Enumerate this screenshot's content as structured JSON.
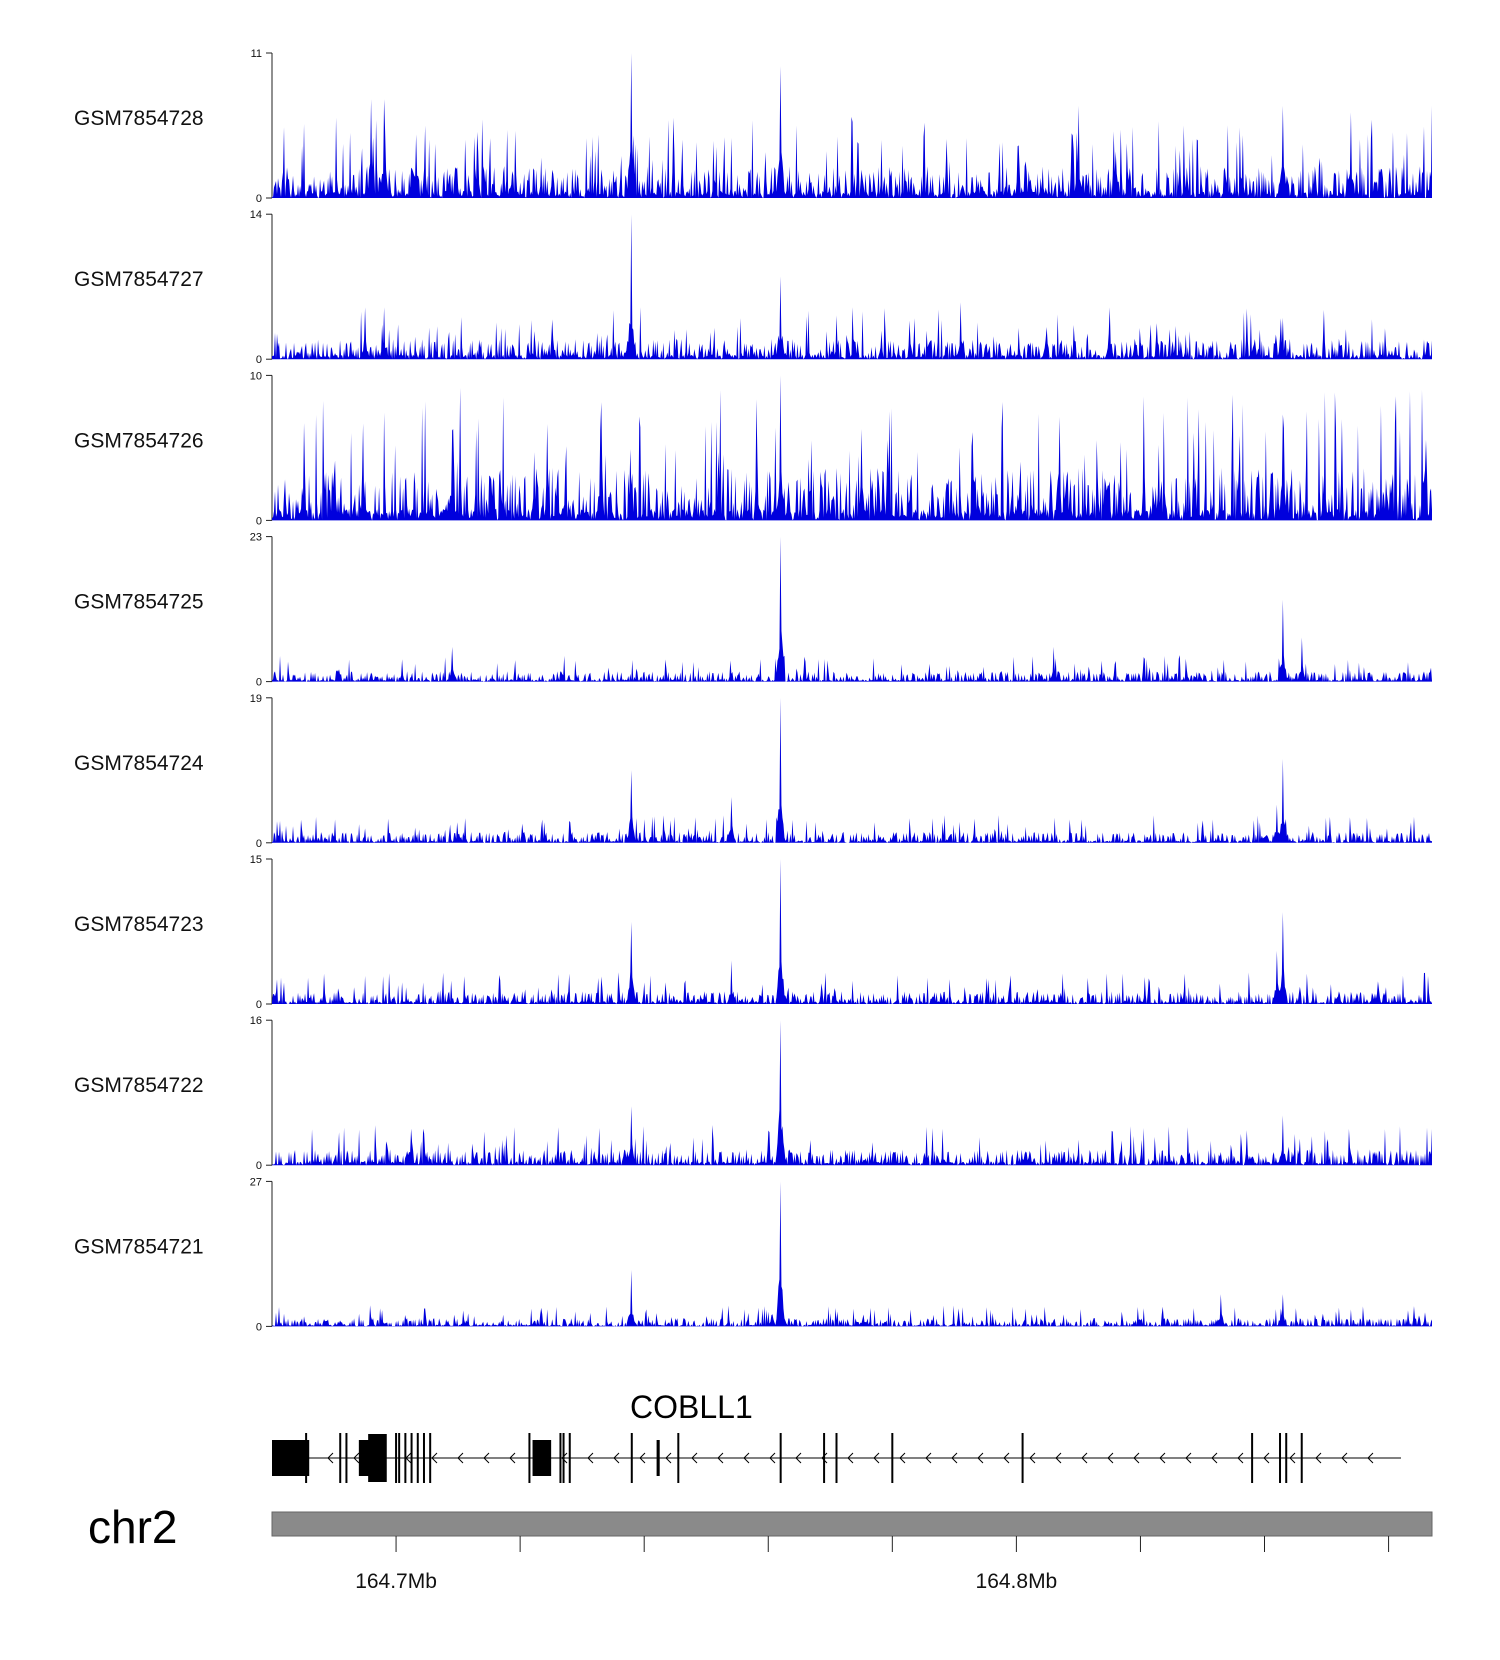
{
  "chart_data": {
    "type": "area",
    "title": "",
    "colors": {
      "signal": "#0000dd",
      "axis": "#222222",
      "ideogram": "#8a8a8a",
      "gene": "#000000"
    },
    "x_range": [
      164.68,
      164.867
    ],
    "x_unit": "Mb",
    "tracks": [
      {
        "name": "GSM7854728",
        "ymax": 11,
        "ymin": 0,
        "ymin_label": "0",
        "ymax_label": "11",
        "peaks": [
          [
            164.738,
            11
          ],
          [
            164.762,
            10
          ],
          [
            164.696,
            7.5
          ],
          [
            164.698,
            7.5
          ],
          [
            164.843,
            7
          ],
          [
            164.867,
            7
          ],
          [
            164.81,
            7
          ],
          [
            164.854,
            6.5
          ]
        ],
        "background": 2.2,
        "seed": 11
      },
      {
        "name": "GSM7854727",
        "ymax": 14,
        "ymin": 0,
        "ymin_label": "0",
        "ymax_label": "14",
        "peaks": [
          [
            164.738,
            14
          ],
          [
            164.762,
            8
          ],
          [
            164.695,
            5
          ],
          [
            164.698,
            5
          ],
          [
            164.791,
            5.5
          ],
          [
            164.815,
            5
          ],
          [
            164.843,
            4
          ]
        ],
        "background": 1.8,
        "seed": 27
      },
      {
        "name": "GSM7854726",
        "ymax": 10,
        "ymin": 0,
        "ymin_label": "0",
        "ymax_label": "10",
        "peaks": [
          [
            164.762,
            10
          ],
          [
            164.843,
            7.3
          ],
          [
            164.709,
            6.2
          ],
          [
            164.733,
            6.2
          ],
          [
            164.775,
            6.3
          ],
          [
            164.752,
            4.7
          ],
          [
            164.823,
            5.2
          ]
        ],
        "background": 3.3,
        "seed": 43
      },
      {
        "name": "GSM7854725",
        "ymax": 23,
        "ymin": 0,
        "ymin_label": "0",
        "ymax_label": "23",
        "peaks": [
          [
            164.762,
            23
          ],
          [
            164.843,
            13
          ],
          [
            164.846,
            7
          ],
          [
            164.709,
            5.5
          ],
          [
            164.806,
            5.5
          ]
        ],
        "background": 1.5,
        "seed": 59
      },
      {
        "name": "GSM7854724",
        "ymax": 19,
        "ymin": 0,
        "ymin_label": "0",
        "ymax_label": "19",
        "peaks": [
          [
            164.762,
            19
          ],
          [
            164.843,
            11
          ],
          [
            164.738,
            9.5
          ],
          [
            164.754,
            6
          ],
          [
            164.842,
            5
          ]
        ],
        "background": 1.3,
        "seed": 71
      },
      {
        "name": "GSM7854723",
        "ymax": 15,
        "ymin": 0,
        "ymin_label": "0",
        "ymax_label": "15",
        "peaks": [
          [
            164.762,
            15
          ],
          [
            164.843,
            9.5
          ],
          [
            164.738,
            8.5
          ],
          [
            164.754,
            4.5
          ],
          [
            164.842,
            5.5
          ]
        ],
        "background": 1.2,
        "seed": 83
      },
      {
        "name": "GSM7854722",
        "ymax": 16,
        "ymin": 0,
        "ymin_label": "0",
        "ymax_label": "16",
        "peaks": [
          [
            164.762,
            16
          ],
          [
            164.738,
            6.5
          ],
          [
            164.843,
            5.5
          ],
          [
            164.867,
            4
          ]
        ],
        "background": 1.6,
        "seed": 97
      },
      {
        "name": "GSM7854721",
        "ymax": 27,
        "ymin": 0,
        "ymin_label": "0",
        "ymax_label": "27",
        "peaks": [
          [
            164.762,
            27
          ],
          [
            164.738,
            10.5
          ],
          [
            164.833,
            6
          ],
          [
            164.843,
            6
          ]
        ],
        "background": 1.4,
        "seed": 109
      }
    ],
    "gene": {
      "name": "COBLL1",
      "strand": "-",
      "start": 164.68,
      "end": 164.862,
      "exons": [
        {
          "start": 164.68,
          "end": 164.686,
          "thick": true
        },
        {
          "start": 164.694,
          "end": 164.698,
          "thick": true
        },
        {
          "start": 164.722,
          "end": 164.725,
          "thick": true
        },
        {
          "start": 164.742,
          "end": 164.7425,
          "thick": true
        }
      ],
      "exon_lines": [
        164.6855,
        164.691,
        164.692,
        164.7,
        164.7005,
        164.7015,
        164.7025,
        164.7035,
        164.7045,
        164.7055,
        164.7215,
        164.7265,
        164.727,
        164.728,
        164.738,
        164.7455,
        164.762,
        164.769,
        164.771,
        164.78,
        164.801,
        164.838,
        164.8425,
        164.8435,
        164.846
      ]
    },
    "ideogram": {
      "chromosome": "chr2",
      "tick_positions": [
        164.7,
        164.72,
        164.74,
        164.76,
        164.78,
        164.8,
        164.82,
        164.84,
        164.86
      ],
      "tick_labels": [
        {
          "pos": 164.7,
          "label": "164.7Mb"
        },
        {
          "pos": 164.8,
          "label": "164.8Mb"
        }
      ]
    }
  }
}
